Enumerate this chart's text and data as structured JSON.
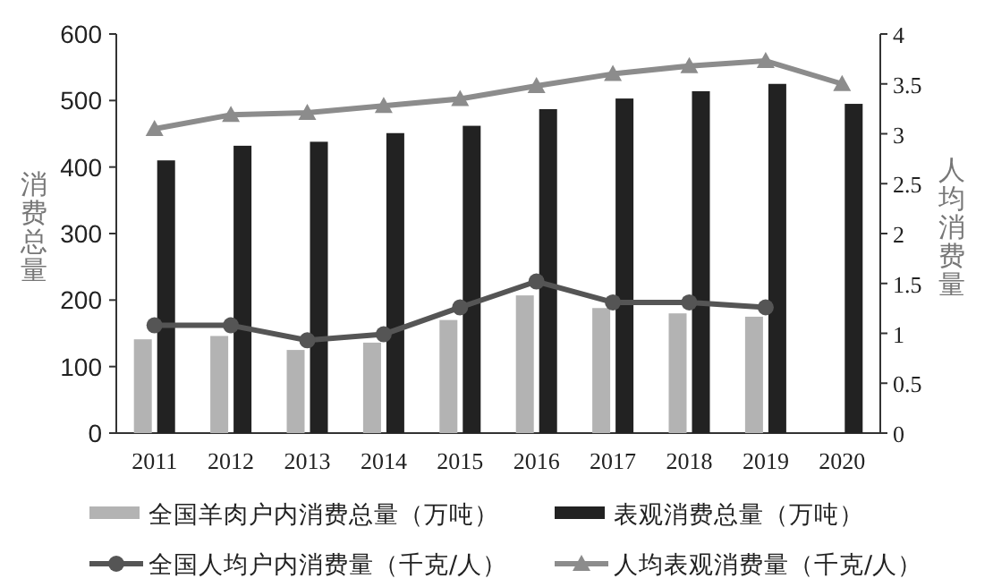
{
  "chart_data": {
    "type": "bar",
    "ylabel": "消费总量",
    "y2label": "人均消费量",
    "categories": [
      "2011",
      "2012",
      "2013",
      "2014",
      "2015",
      "2016",
      "2017",
      "2018",
      "2019",
      "2020"
    ],
    "series": [
      {
        "name": "全国羊肉户内消费总量（万吨）",
        "color": "#b3b3b3",
        "values": [
          141,
          146,
          125,
          136,
          170,
          207,
          188,
          180,
          175,
          null
        ]
      },
      {
        "name": "表观消费总量（万吨）",
        "color": "#222222",
        "values": [
          410,
          432,
          438,
          451,
          462,
          487,
          503,
          514,
          525,
          495
        ]
      },
      {
        "name": "全国人均户内消费量（千克/人）",
        "type": "line",
        "axis": "y2",
        "marker": "circle",
        "color": "#555555",
        "values": [
          1.08,
          1.08,
          0.93,
          0.99,
          1.26,
          1.52,
          1.31,
          1.31,
          1.26,
          null
        ]
      },
      {
        "name": "人均表观消费量（千克/人）",
        "type": "line",
        "axis": "y2",
        "marker": "triangle",
        "color": "#8c8c8c",
        "values": [
          3.05,
          3.19,
          3.21,
          3.28,
          3.35,
          3.48,
          3.6,
          3.68,
          3.73,
          3.5
        ]
      }
    ],
    "ylim": [
      0,
      600
    ],
    "yticks": [
      0,
      100,
      200,
      300,
      400,
      500,
      600
    ],
    "y2lim": [
      0,
      4
    ],
    "y2ticks": [
      0,
      0.5,
      1,
      1.5,
      2,
      2.5,
      3,
      3.5,
      4
    ],
    "grid": false,
    "legend": "bottom"
  }
}
